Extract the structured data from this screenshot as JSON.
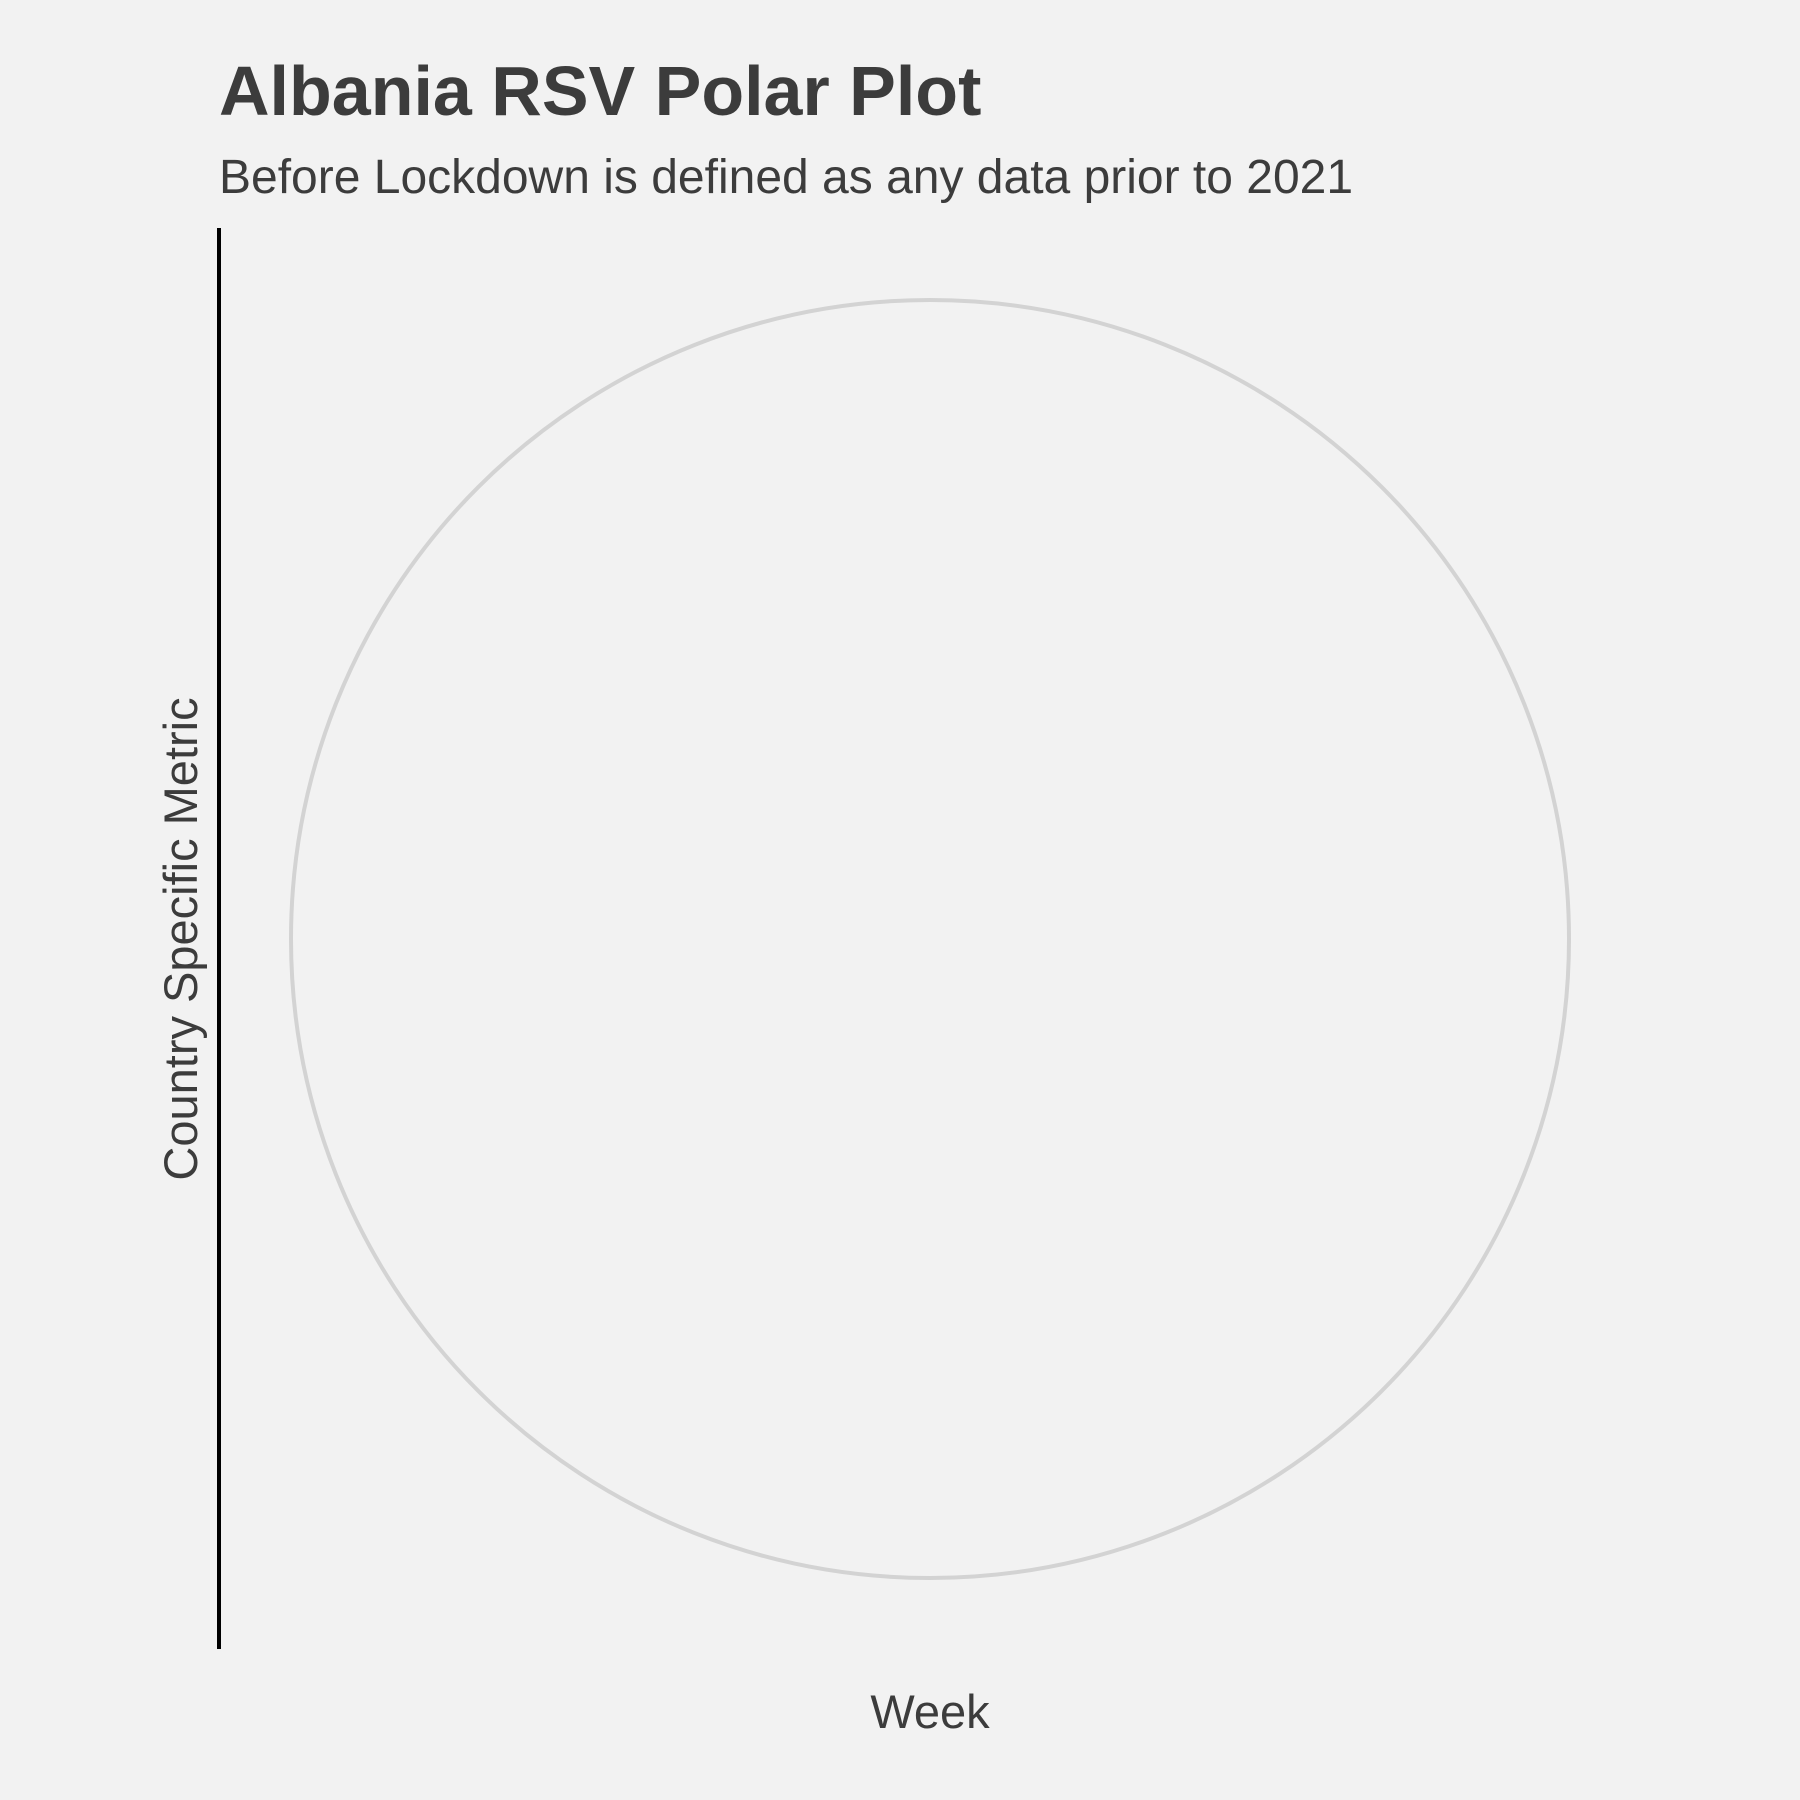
{
  "chart_data": {
    "type": "line",
    "coord": "polar",
    "title": "Albania RSV Polar Plot",
    "subtitle": "Before Lockdown is defined as any data prior to 2021",
    "xlabel": "Week",
    "ylabel": "Country Specific Metric",
    "series": [],
    "grid": true,
    "legend": "none",
    "colors": {
      "background": "#f2f2f2",
      "grid": "#d3d3d3",
      "axis_line": "#000000",
      "text": "#3c3c3c"
    }
  }
}
